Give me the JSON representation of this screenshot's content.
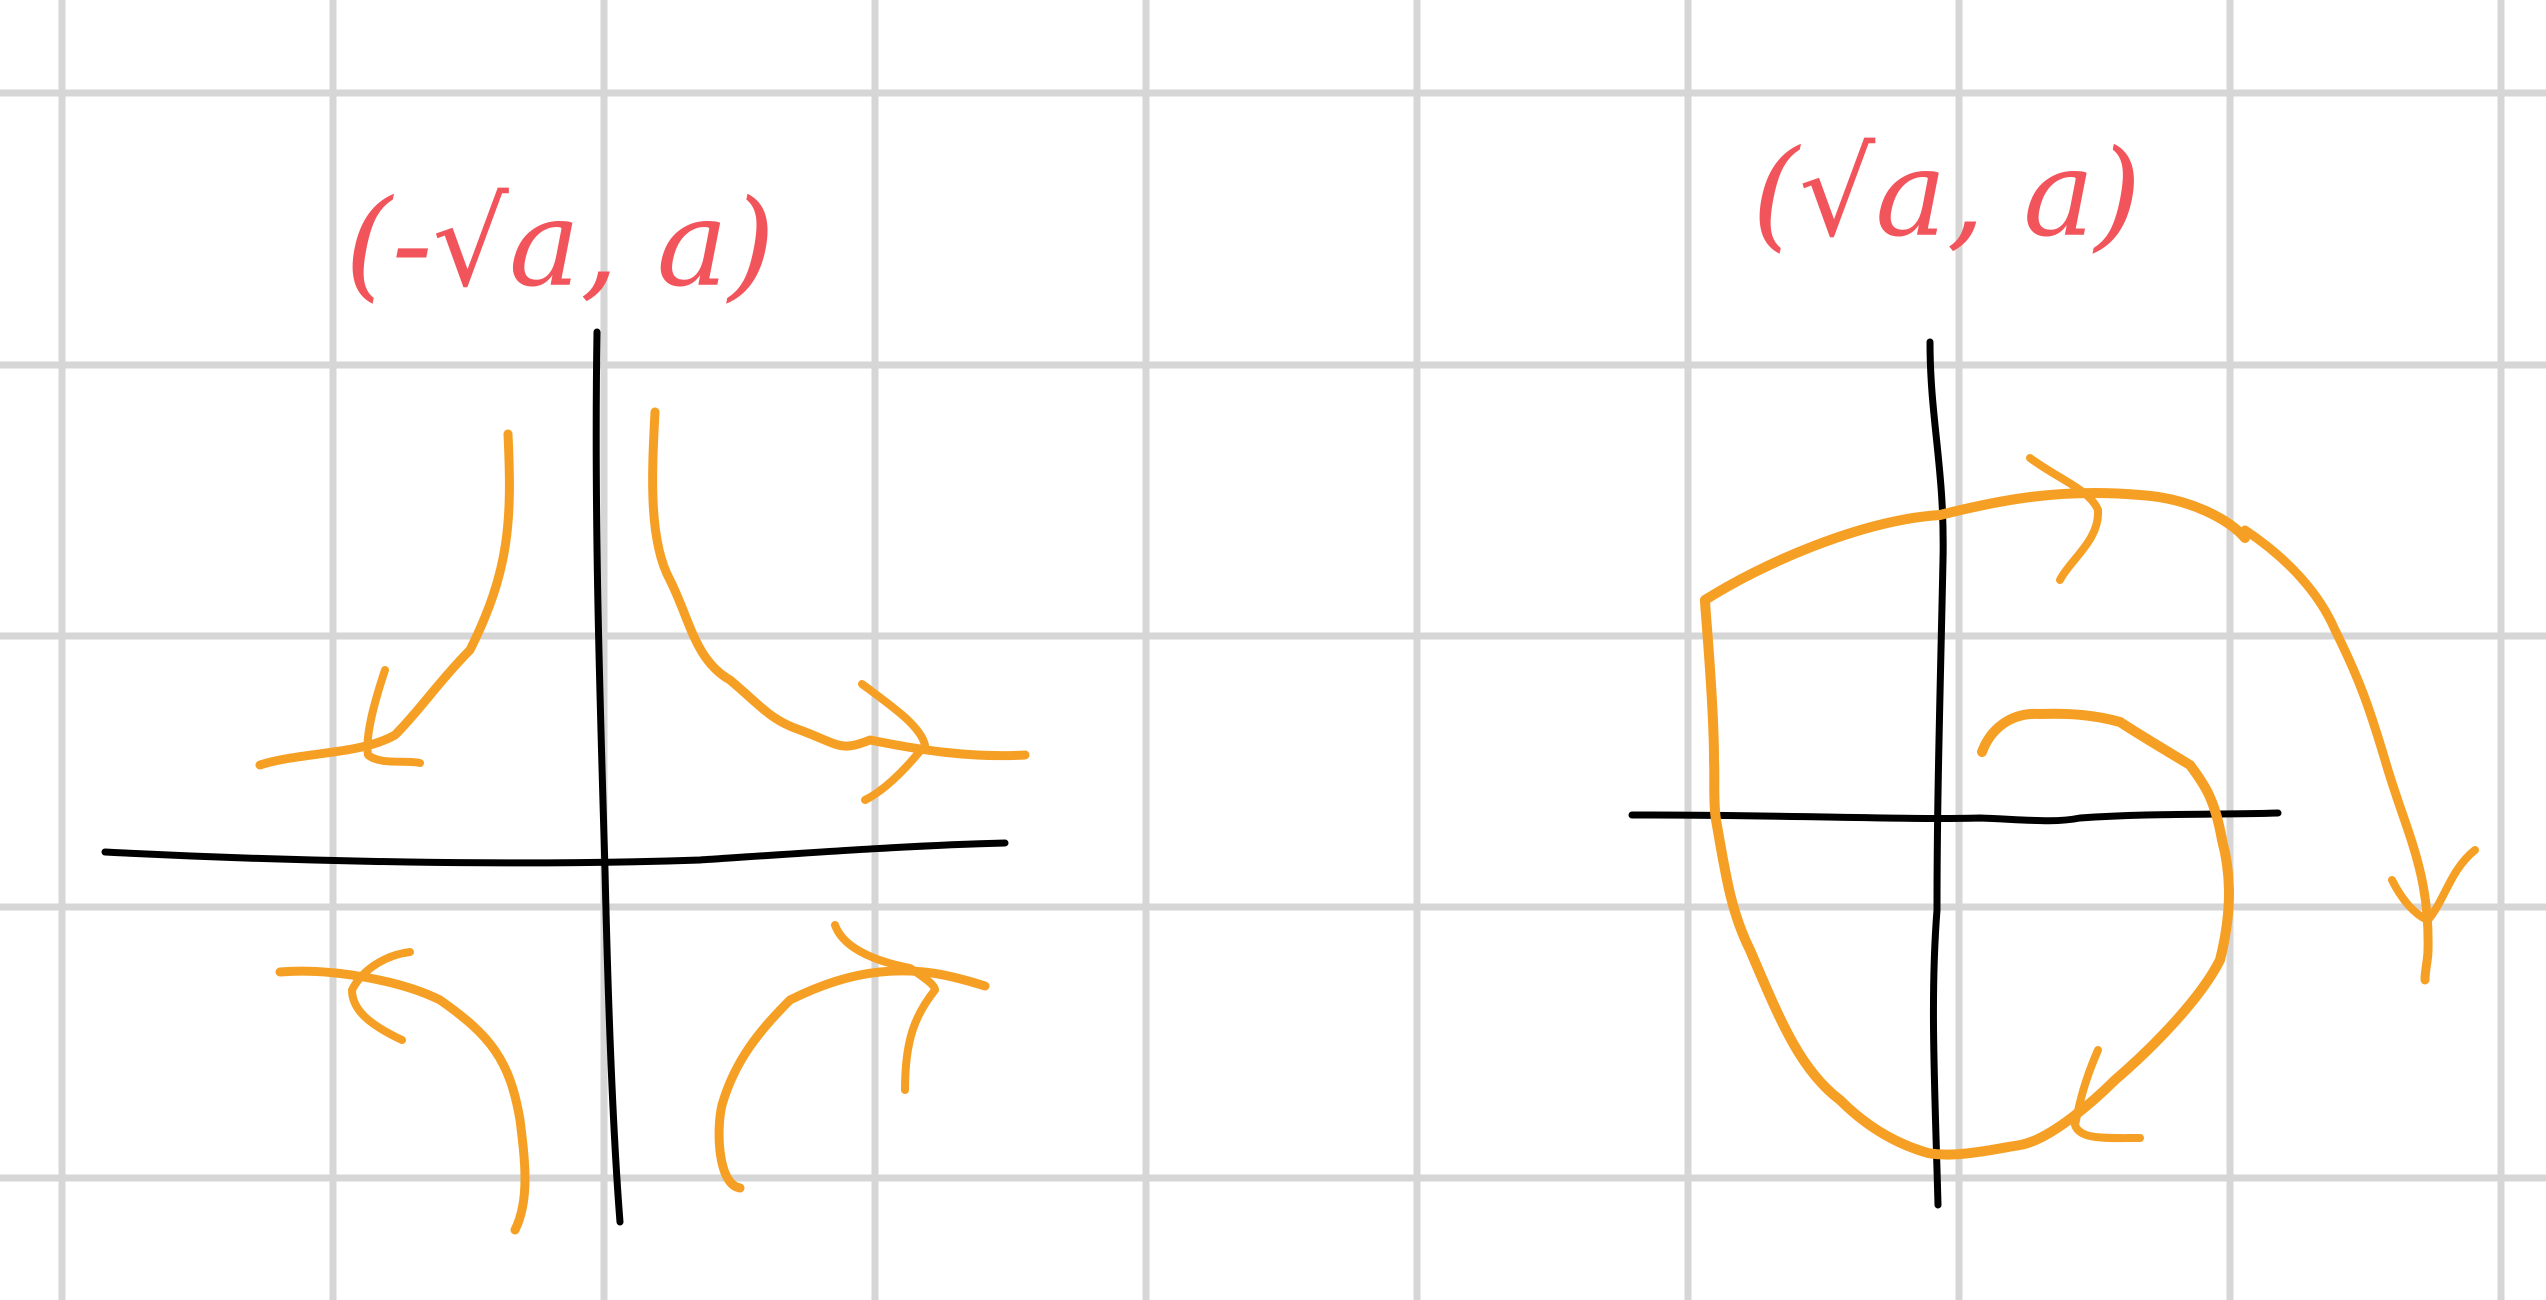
{
  "colors": {
    "background": "#ffffff",
    "grid": "#d6d6d6",
    "axes": "#000000",
    "trajectories": "#f5a025",
    "labels": "#f2545b"
  },
  "diagrams": [
    {
      "label": "(-√a, a)"
    },
    {
      "label": "(√a, a)"
    }
  ]
}
